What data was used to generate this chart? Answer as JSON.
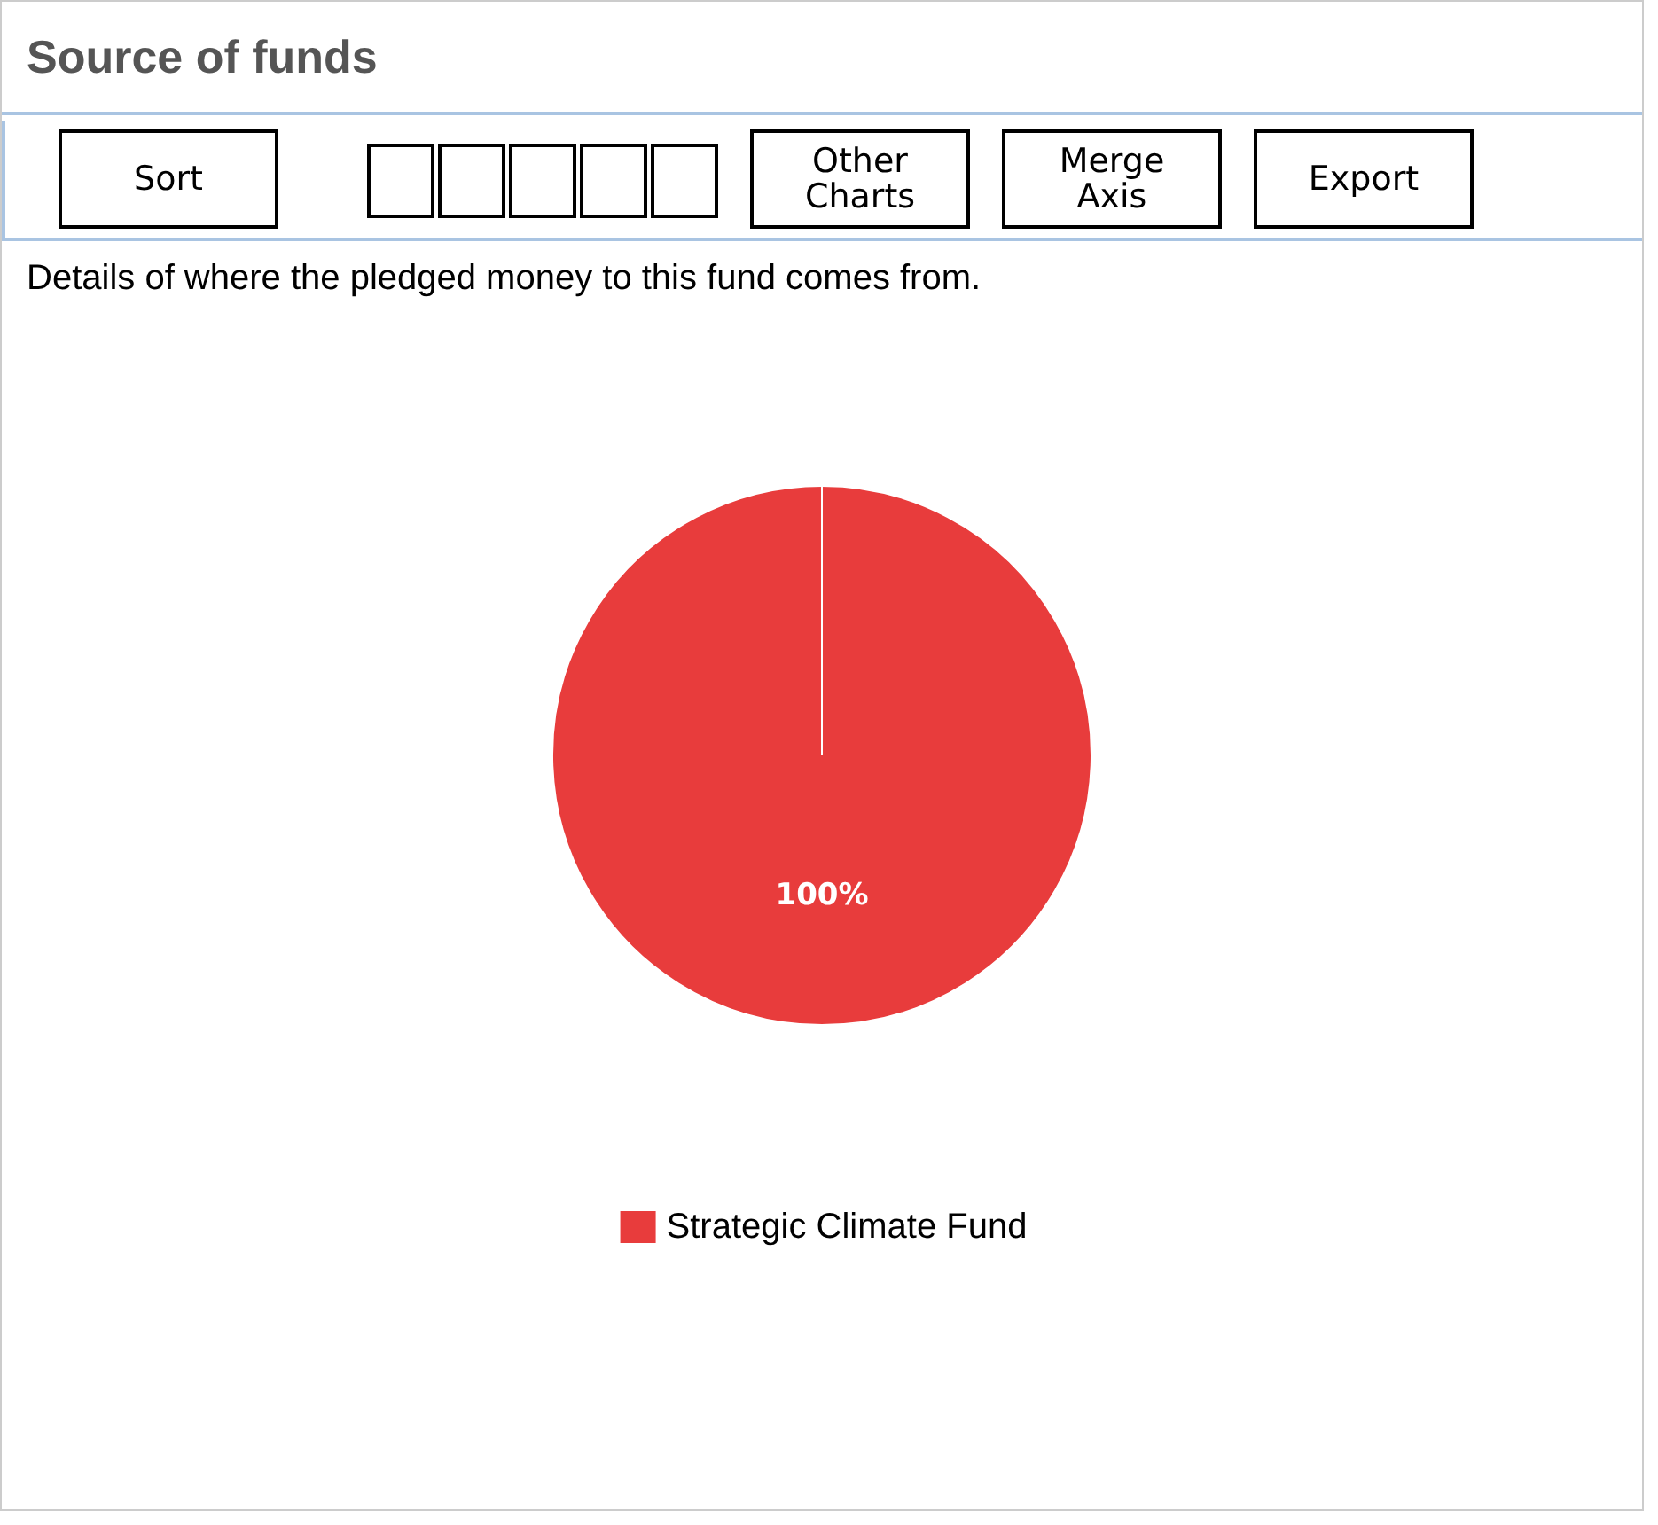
{
  "chart_data": {
    "type": "pie",
    "title": "Source of funds",
    "subtitle": "Details of where the pledged money to this fund comes from.",
    "annotations": [
      "Sort",
      "Other Charts",
      "Merge Axis",
      "Export"
    ],
    "categories": [
      "Strategic Climate Fund"
    ],
    "values": [
      100
    ],
    "colors": [
      "#e83c3c"
    ],
    "value_labels": [
      "100%"
    ],
    "legend": "bottom"
  }
}
